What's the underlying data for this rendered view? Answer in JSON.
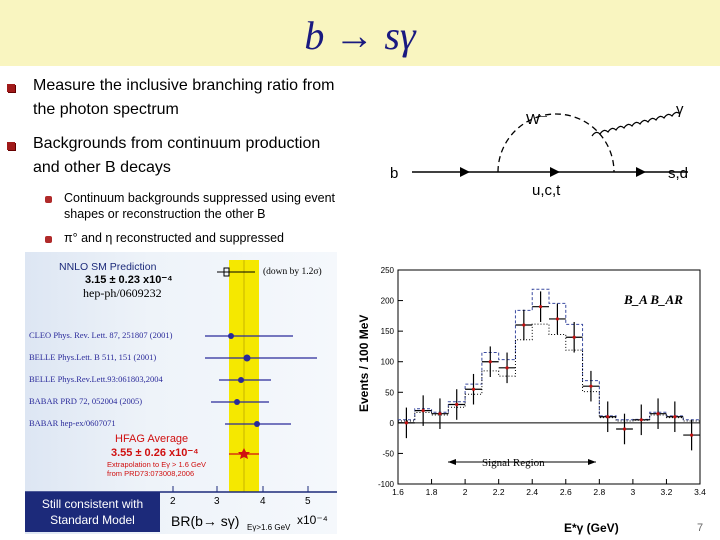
{
  "slide": {
    "title": "b → sγ",
    "page_number": "7",
    "bullets": [
      {
        "line1": "Measure the inclusive branching ratio from",
        "line2": "the photon spectrum"
      },
      {
        "line1": "Backgrounds from continuum production",
        "line2": "and other B decays"
      }
    ],
    "subbullets": [
      {
        "line1": "Continuum backgrounds suppressed using event",
        "line2": "shapes or reconstruction the other B"
      },
      {
        "line1": "π° and η reconstructed and suppressed",
        "line2": ""
      }
    ]
  },
  "diagram": {
    "labels": {
      "w": "W⁻",
      "gamma": "γ",
      "b": "b",
      "uct": "u,c,t",
      "sd": "s,d"
    }
  },
  "left_plot": {
    "nnlo_title": "NNLO SM Prediction",
    "nnlo_value": "3.15 ± 0.23 x10⁻⁴",
    "nnlo_ref": "hep-ph/0609232",
    "down_label": "(down by 1.2σ)",
    "experiments": [
      "CLEO Phys. Rev. Lett. 87, 251807 (2001)",
      "BELLE Phys.Lett. B 511, 151 (2001)",
      "BELLE Phys.Rev.Lett.93:061803,2004",
      "BABAR PRD 72, 052004 (2005)",
      "BABAR hep-ex/0607071"
    ],
    "hfag_title": "HFAG Average",
    "hfag_value": "3.55 ± 0.26 x10⁻⁴",
    "hfag_note1": "Extrapolation to Eγ > 1.6 GeV",
    "hfag_note2": "from PRD73:073008,2006",
    "x_ticks": [
      "2",
      "3",
      "4",
      "5"
    ],
    "x_label": "BR(b→ sγ)",
    "x_label_sub": "Eγ>1.6 GeV",
    "x_label_exp": "x10⁻⁴",
    "consistent_line1": "Still consistent with",
    "consistent_line2": "Standard Model",
    "colors": {
      "band": "#f5e800",
      "axis": "#1c2a7a",
      "experiment": "#2a2a9a",
      "red": "#d01010"
    }
  },
  "chart_data": {
    "type": "line",
    "title": "",
    "legend_text": "B_A B_AR",
    "signal_region_label": "Signal Region",
    "xlabel": "E*γ (GeV)",
    "ylabel": "Events / 100 MeV",
    "xlim": [
      1.6,
      3.4
    ],
    "ylim": [
      -100,
      250
    ],
    "x_ticks": [
      "1.6",
      "1.8",
      "2",
      "2.2",
      "2.4",
      "2.6",
      "2.8",
      "3",
      "3.2",
      "3.4"
    ],
    "y_ticks": [
      "-100",
      "-50",
      "0",
      "50",
      "100",
      "150",
      "200",
      "250"
    ],
    "series": [
      {
        "x": [
          1.65,
          1.75,
          1.85,
          1.95,
          2.05,
          2.15,
          2.25,
          2.35,
          2.45,
          2.55,
          2.65,
          2.75,
          2.85,
          2.95,
          3.05,
          3.15,
          3.25,
          3.35
        ],
        "values": [
          0,
          20,
          15,
          30,
          55,
          100,
          90,
          160,
          190,
          170,
          140,
          60,
          10,
          -10,
          5,
          15,
          10,
          -20
        ]
      }
    ]
  }
}
